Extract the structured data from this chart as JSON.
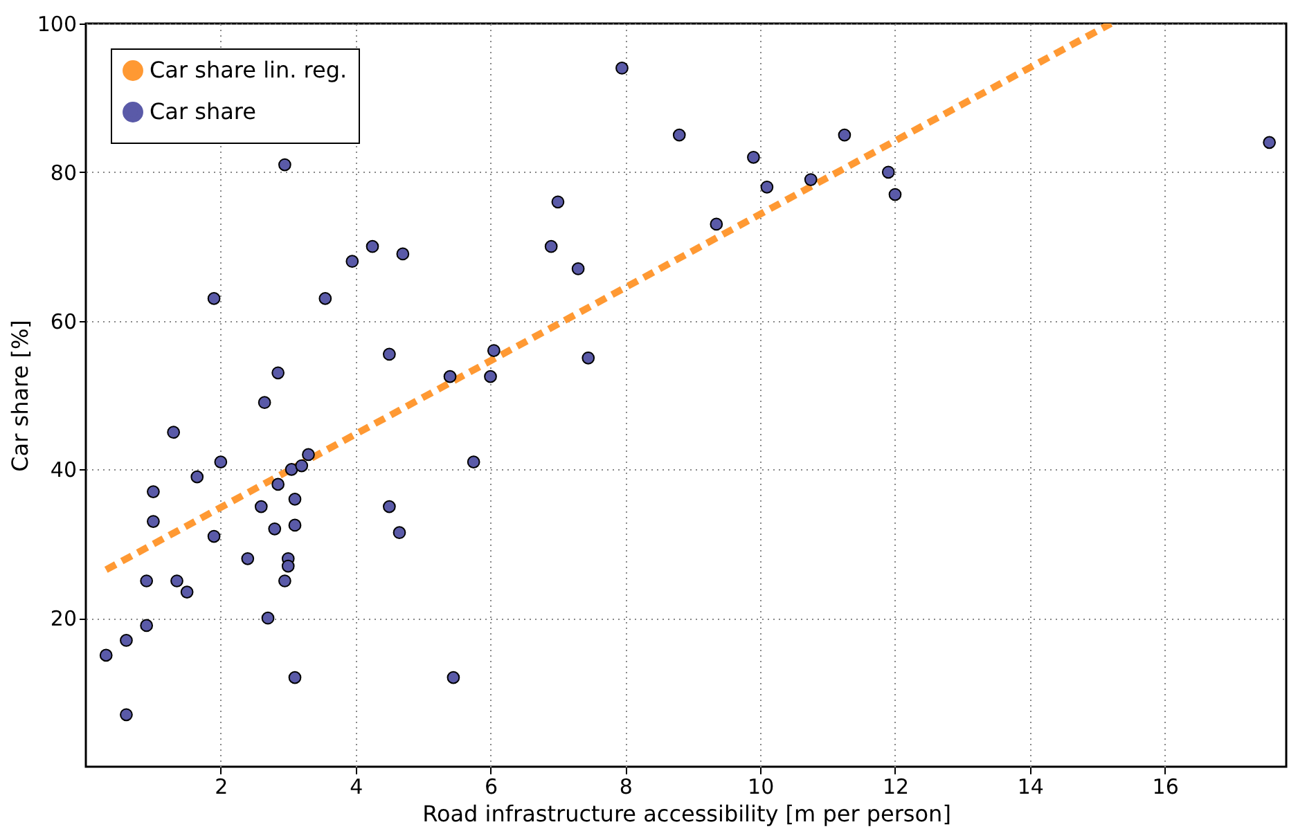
{
  "chart_data": {
    "type": "scatter",
    "xlabel": "Road infrastructure accessibility [m per person]",
    "ylabel": "Car share [%]",
    "xlim": [
      0,
      17.8
    ],
    "ylim": [
      0,
      100
    ],
    "xticks": [
      2,
      4,
      6,
      8,
      10,
      12,
      14,
      16
    ],
    "yticks": [
      20,
      40,
      60,
      80,
      100
    ],
    "grid": true,
    "legend": "top left",
    "series": [
      {
        "name": "Car share lin. reg.",
        "type": "line",
        "line_style": "dashed",
        "color": "#ff9933",
        "x": [
          0.3,
          15.2
        ],
        "values": [
          26.5,
          100
        ]
      },
      {
        "name": "Car share",
        "marker": "circle",
        "color": "#5a5aa8",
        "x": [
          0.3,
          0.6,
          0.6,
          0.9,
          0.9,
          1.0,
          1.0,
          1.3,
          1.35,
          1.5,
          1.65,
          1.9,
          1.9,
          2.0,
          2.4,
          2.6,
          2.65,
          2.7,
          2.8,
          2.85,
          2.85,
          2.95,
          2.95,
          3.0,
          3.0,
          3.05,
          3.1,
          3.1,
          3.1,
          3.2,
          3.3,
          3.55,
          3.95,
          4.25,
          4.5,
          4.5,
          4.7,
          4.65,
          5.4,
          5.45,
          5.75,
          6.0,
          6.05,
          6.9,
          7.0,
          7.3,
          7.45,
          7.95,
          8.8,
          9.35,
          9.9,
          10.1,
          10.75,
          11.25,
          11.9,
          12.0,
          17.55
        ],
        "values": [
          15,
          17,
          7,
          25,
          19,
          33,
          37,
          45,
          25,
          23.5,
          39,
          63,
          31,
          41,
          28,
          35,
          49,
          20,
          32,
          38,
          53,
          81,
          25,
          28,
          27,
          40,
          36,
          32.5,
          12,
          40.5,
          42,
          63,
          68,
          70,
          55.5,
          35,
          69,
          31.5,
          52.5,
          12,
          41,
          52.5,
          56,
          70,
          76,
          67,
          55,
          94,
          85,
          73,
          82,
          78,
          79,
          85,
          80,
          77,
          84
        ]
      }
    ]
  }
}
